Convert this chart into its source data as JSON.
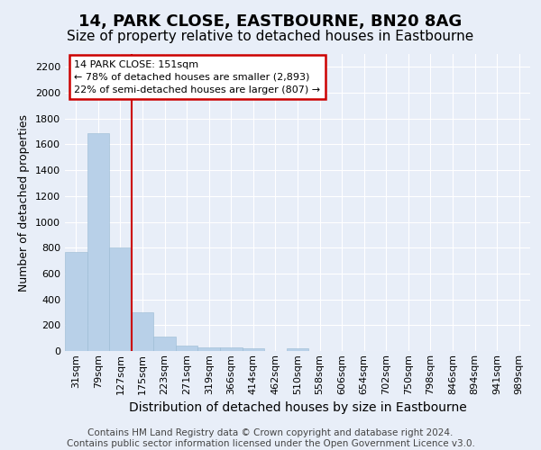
{
  "title": "14, PARK CLOSE, EASTBOURNE, BN20 8AG",
  "subtitle": "Size of property relative to detached houses in Eastbourne",
  "xlabel": "Distribution of detached houses by size in Eastbourne",
  "ylabel": "Number of detached properties",
  "categories": [
    "31sqm",
    "79sqm",
    "127sqm",
    "175sqm",
    "223sqm",
    "271sqm",
    "319sqm",
    "366sqm",
    "414sqm",
    "462sqm",
    "510sqm",
    "558sqm",
    "606sqm",
    "654sqm",
    "702sqm",
    "750sqm",
    "798sqm",
    "846sqm",
    "894sqm",
    "941sqm",
    "989sqm"
  ],
  "values": [
    770,
    1690,
    800,
    300,
    110,
    45,
    30,
    25,
    20,
    0,
    20,
    0,
    0,
    0,
    0,
    0,
    0,
    0,
    0,
    0,
    0
  ],
  "bar_color": "#b8d0e8",
  "bar_edge_color": "#9abbd4",
  "vline_color": "#cc0000",
  "vline_pos": 2.5,
  "annotation_line1": "14 PARK CLOSE: 151sqm",
  "annotation_line2": "← 78% of detached houses are smaller (2,893)",
  "annotation_line3": "22% of semi-detached houses are larger (807) →",
  "annotation_box_color": "#cc0000",
  "ylim": [
    0,
    2300
  ],
  "yticks": [
    0,
    200,
    400,
    600,
    800,
    1000,
    1200,
    1400,
    1600,
    1800,
    2000,
    2200
  ],
  "background_color": "#e8eef8",
  "grid_color": "#ffffff",
  "footer": "Contains HM Land Registry data © Crown copyright and database right 2024.\nContains public sector information licensed under the Open Government Licence v3.0.",
  "title_fontsize": 13,
  "subtitle_fontsize": 11,
  "xlabel_fontsize": 10,
  "ylabel_fontsize": 9,
  "tick_fontsize": 8,
  "footer_fontsize": 7.5
}
